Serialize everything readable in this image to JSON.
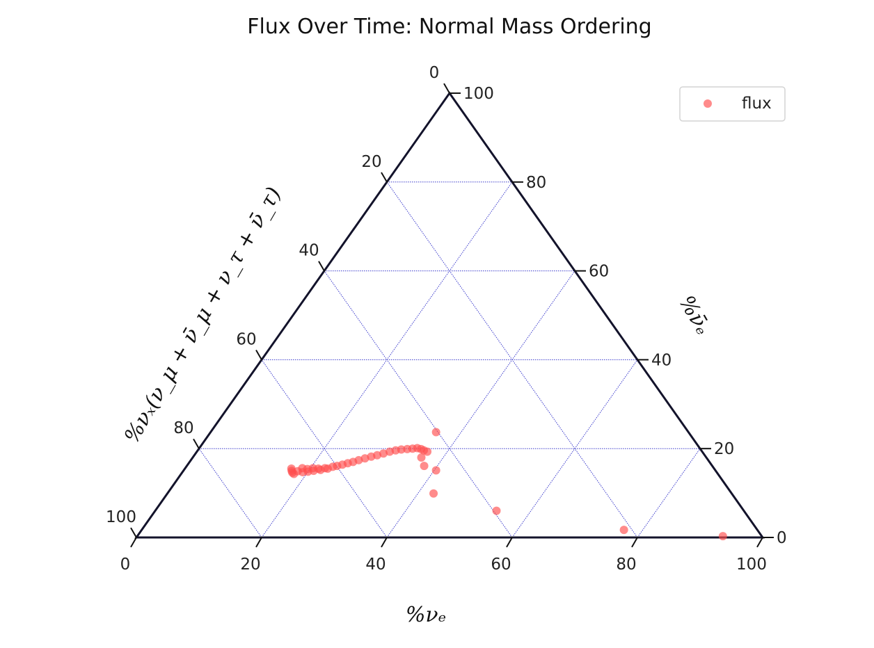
{
  "chart_data": {
    "type": "scatter",
    "coordinate_system": "ternary",
    "title": "Flux Over Time: Normal Mass Ordering",
    "bottom_axis_label": "%νₑ",
    "right_axis_label": "%ν̄ₑ",
    "left_axis_label": "%νₓ(ν_μ + ν̄_μ + ν_τ + ν̄_τ)",
    "scale": 100,
    "gridlines": [
      20,
      40,
      60,
      80
    ],
    "bottom_ticks": [
      "0",
      "20",
      "40",
      "60",
      "80",
      "100"
    ],
    "right_ticks": [
      "0",
      "20",
      "40",
      "60",
      "80",
      "100"
    ],
    "left_ticks": [
      "0",
      "20",
      "40",
      "60",
      "80",
      "100"
    ],
    "legend": {
      "entry": "flux",
      "position": "top-right"
    },
    "colors": {
      "points": "#ff4d4d",
      "grid": "#3a3acc",
      "frame": "#13132b"
    },
    "series": [
      {
        "name": "flux",
        "points": [
          {
            "nu_e": 17.0,
            "nu_e_bar": 15.5
          },
          {
            "nu_e": 17.3,
            "nu_e_bar": 15.0
          },
          {
            "nu_e": 17.6,
            "nu_e_bar": 14.6
          },
          {
            "nu_e": 18.0,
            "nu_e_bar": 14.3
          },
          {
            "nu_e": 18.3,
            "nu_e_bar": 14.9
          },
          {
            "nu_e": 18.7,
            "nu_e_bar": 15.6
          },
          {
            "nu_e": 19.2,
            "nu_e_bar": 14.7
          },
          {
            "nu_e": 19.6,
            "nu_e_bar": 15.4
          },
          {
            "nu_e": 20.0,
            "nu_e_bar": 14.8
          },
          {
            "nu_e": 20.4,
            "nu_e_bar": 15.6
          },
          {
            "nu_e": 20.8,
            "nu_e_bar": 15.0
          },
          {
            "nu_e": 21.3,
            "nu_e_bar": 15.5
          },
          {
            "nu_e": 21.8,
            "nu_e_bar": 15.2
          },
          {
            "nu_e": 22.3,
            "nu_e_bar": 15.6
          },
          {
            "nu_e": 22.8,
            "nu_e_bar": 15.5
          },
          {
            "nu_e": 23.4,
            "nu_e_bar": 15.9
          },
          {
            "nu_e": 24.0,
            "nu_e_bar": 16.1
          },
          {
            "nu_e": 24.7,
            "nu_e_bar": 16.4
          },
          {
            "nu_e": 25.4,
            "nu_e_bar": 16.7
          },
          {
            "nu_e": 26.1,
            "nu_e_bar": 17.0
          },
          {
            "nu_e": 26.8,
            "nu_e_bar": 17.4
          },
          {
            "nu_e": 27.6,
            "nu_e_bar": 17.8
          },
          {
            "nu_e": 28.4,
            "nu_e_bar": 18.2
          },
          {
            "nu_e": 29.2,
            "nu_e_bar": 18.5
          },
          {
            "nu_e": 30.0,
            "nu_e_bar": 18.9
          },
          {
            "nu_e": 30.8,
            "nu_e_bar": 19.3
          },
          {
            "nu_e": 31.6,
            "nu_e_bar": 19.6
          },
          {
            "nu_e": 32.4,
            "nu_e_bar": 19.8
          },
          {
            "nu_e": 33.3,
            "nu_e_bar": 19.9
          },
          {
            "nu_e": 34.1,
            "nu_e_bar": 20.0
          },
          {
            "nu_e": 34.8,
            "nu_e_bar": 20.1
          },
          {
            "nu_e": 35.5,
            "nu_e_bar": 19.9
          },
          {
            "nu_e": 36.1,
            "nu_e_bar": 19.6
          },
          {
            "nu_e": 36.8,
            "nu_e_bar": 19.3
          },
          {
            "nu_e": 36.5,
            "nu_e_bar": 18.0
          },
          {
            "nu_e": 37.9,
            "nu_e_bar": 16.1
          },
          {
            "nu_e": 40.3,
            "nu_e_bar": 15.1
          },
          {
            "nu_e": 36.0,
            "nu_e_bar": 23.7
          },
          {
            "nu_e": 42.5,
            "nu_e_bar": 9.9
          },
          {
            "nu_e": 54.5,
            "nu_e_bar": 6.0
          },
          {
            "nu_e": 77.0,
            "nu_e_bar": 1.7
          },
          {
            "nu_e": 93.5,
            "nu_e_bar": 0.3
          }
        ]
      }
    ]
  }
}
